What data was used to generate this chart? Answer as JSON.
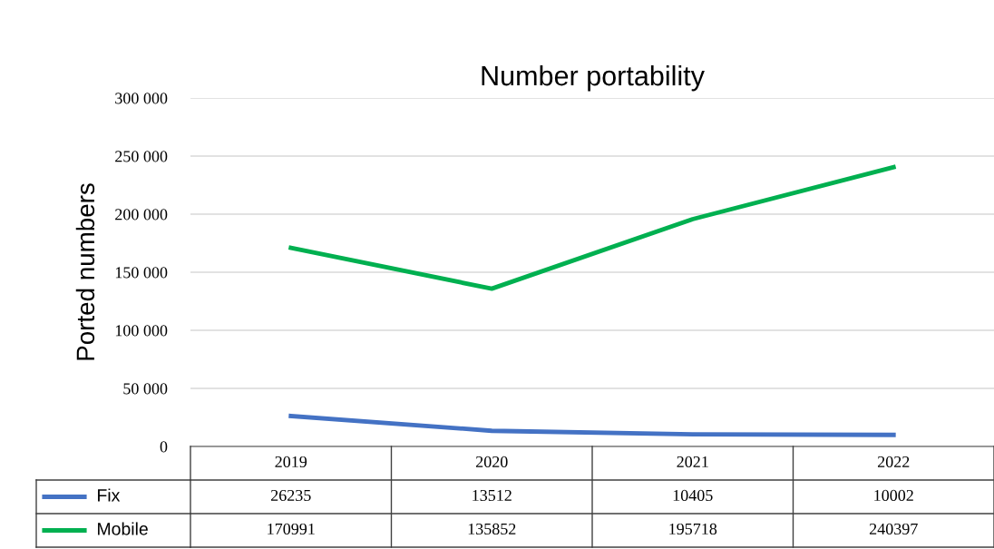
{
  "chart_data": {
    "type": "line",
    "title": "Number portability",
    "ylabel": "Ported numbers",
    "categories": [
      "2019",
      "2020",
      "2021",
      "2022"
    ],
    "series": [
      {
        "name": "Fix",
        "color": "#4472c4",
        "values": [
          26235,
          13512,
          10405,
          10002
        ]
      },
      {
        "name": "Mobile",
        "color": "#00b050",
        "values": [
          170991,
          135852,
          195718,
          240397
        ]
      }
    ],
    "ylim": [
      0,
      300000
    ],
    "yticks": [
      {
        "value": 0,
        "label": "0"
      },
      {
        "value": 50000,
        "label": "50 000"
      },
      {
        "value": 100000,
        "label": "100 000"
      },
      {
        "value": 150000,
        "label": "150 000"
      },
      {
        "value": 200000,
        "label": "200 000"
      },
      {
        "value": 250000,
        "label": "250 000"
      },
      {
        "value": 300000,
        "label": "300 000"
      }
    ],
    "grid": "y",
    "legend": "bottom",
    "data_labels": true,
    "marker": "none"
  }
}
